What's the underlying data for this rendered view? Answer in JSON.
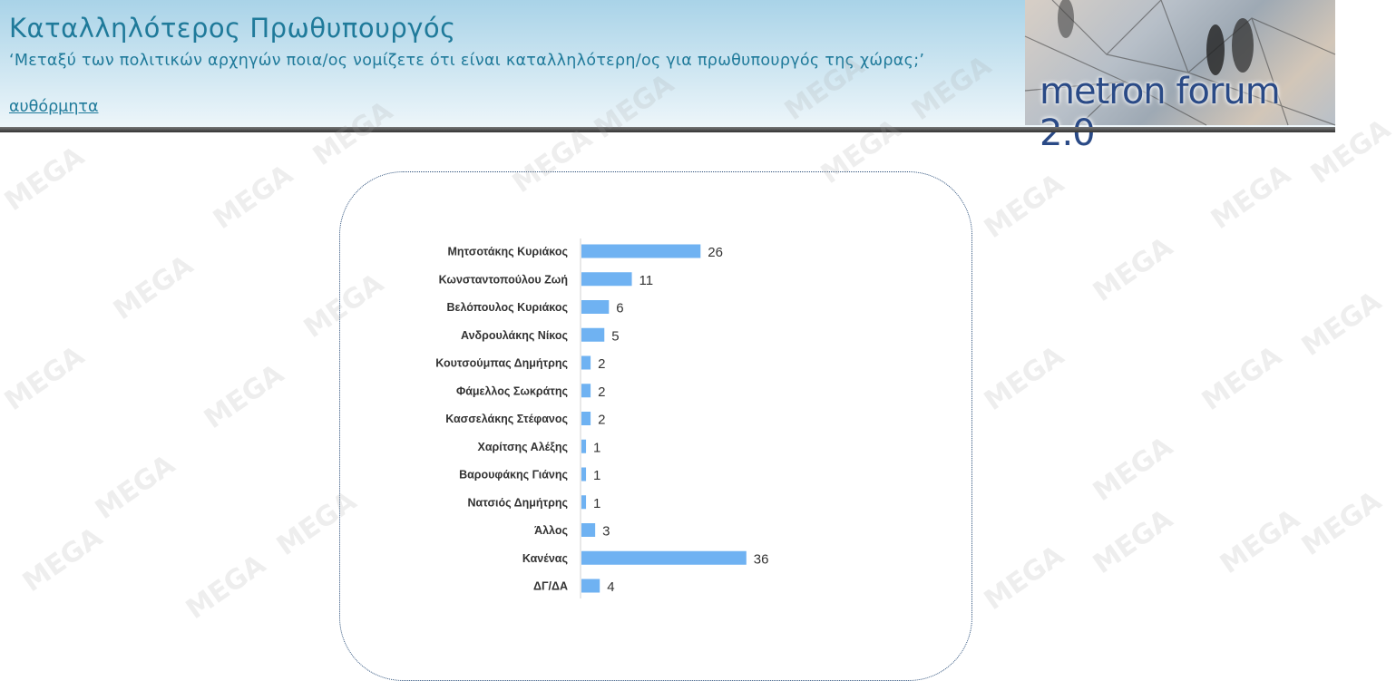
{
  "header": {
    "title": "Καταλληλότερος Πρωθυπουργός",
    "subtitle": "‘Μεταξύ των πολιτικών αρχηγών ποια/ος νομίζετε ότι είναι καταλληλότερη/ος για πρωθυπουργός της χώρας;’",
    "link": "αυθόρμητα"
  },
  "logo": {
    "text": "metron forum 2.0"
  },
  "watermark": "MEGA",
  "colors": {
    "bar": "#6fb2f2",
    "title": "#1f7a9a"
  },
  "chart_data": {
    "type": "bar",
    "orientation": "horizontal",
    "categories": [
      "Μητσοτάκης Κυριάκος",
      "Κωνσταντοπούλου Ζωή",
      "Βελόπουλος Κυριάκος",
      "Ανδρουλάκης Νίκος",
      "Κουτσούμπας Δημήτρης",
      "Φάμελλος Σωκράτης",
      "Κασσελάκης Στέφανος",
      "Χαρίτσης Αλέξης",
      "Βαρουφάκης Γιάνης",
      "Νατσιός Δημήτρης",
      "Άλλος",
      "Κανένας",
      "ΔΓ/ΔΑ"
    ],
    "values": [
      26,
      11,
      6,
      5,
      2,
      2,
      2,
      1,
      1,
      1,
      3,
      36,
      4
    ],
    "title": "",
    "xlabel": "",
    "ylabel": "",
    "grid": false,
    "data_labels": true
  }
}
